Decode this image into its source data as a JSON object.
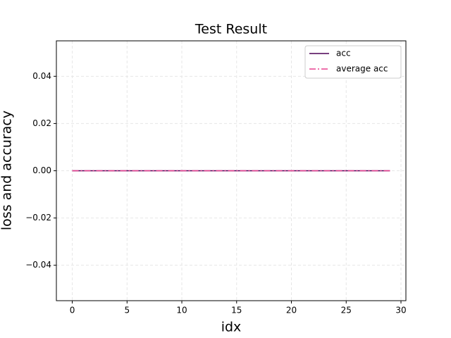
{
  "chart_data": {
    "type": "line",
    "title": "Test Result",
    "x_label": "idx",
    "y_label": "loss and accuracy",
    "x": [
      0,
      1,
      2,
      3,
      4,
      5,
      6,
      7,
      8,
      9,
      10,
      11,
      12,
      13,
      14,
      15,
      16,
      17,
      18,
      19,
      20,
      21,
      22,
      23,
      24,
      25,
      26,
      27,
      28,
      29
    ],
    "series": [
      {
        "name": "acc",
        "color": "#4b0055",
        "line_style": "solid",
        "values": [
          0,
          0,
          0,
          0,
          0,
          0,
          0,
          0,
          0,
          0,
          0,
          0,
          0,
          0,
          0,
          0,
          0,
          0,
          0,
          0,
          0,
          0,
          0,
          0,
          0,
          0,
          0,
          0,
          0,
          0
        ]
      },
      {
        "name": "average acc",
        "color": "#e8408f",
        "line_style": "dashdot",
        "values": [
          0,
          0,
          0,
          0,
          0,
          0,
          0,
          0,
          0,
          0,
          0,
          0,
          0,
          0,
          0,
          0,
          0,
          0,
          0,
          0,
          0,
          0,
          0,
          0,
          0,
          0,
          0,
          0,
          0,
          0
        ]
      }
    ],
    "xlim": [
      -1.45,
      30.45
    ],
    "xticks": [
      0,
      5,
      10,
      15,
      20,
      25,
      30
    ],
    "ylim": [
      -0.055,
      0.055
    ],
    "yticks": [
      {
        "value": -0.04,
        "label": "−0.04"
      },
      {
        "value": -0.02,
        "label": "−0.02"
      },
      {
        "value": 0,
        "label": "0.00"
      },
      {
        "value": 0.02,
        "label": "0.02"
      },
      {
        "value": 0.04,
        "label": "0.04"
      }
    ],
    "grid": true,
    "legend": "upper right"
  }
}
